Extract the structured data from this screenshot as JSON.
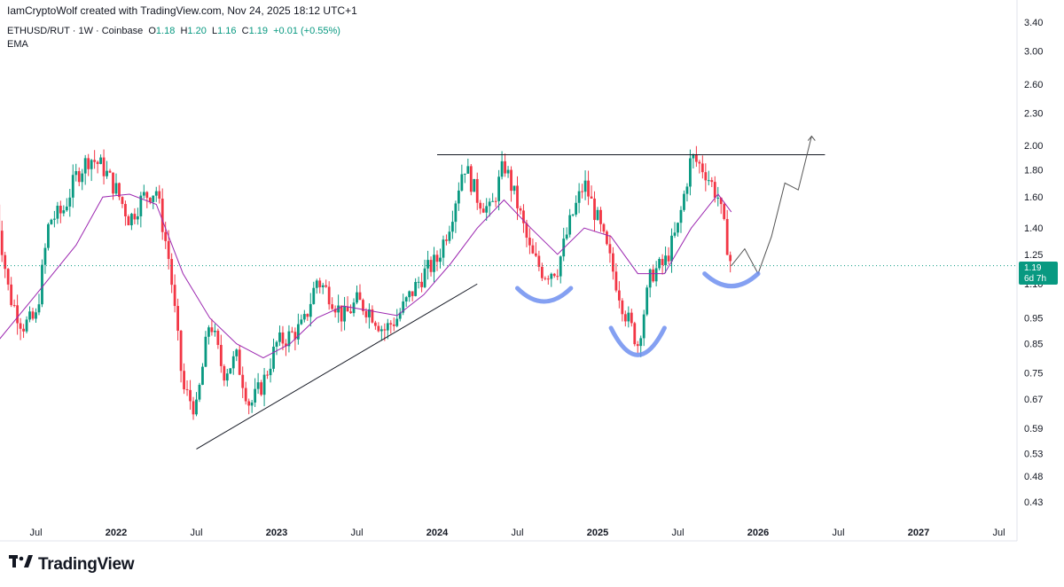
{
  "header": {
    "attribution": "IamCryptoWolf created with TradingView.com, Nov 24, 2025 18:12 UTC+1"
  },
  "legend": {
    "symbol": "ETHUSD/RUT · 1W · Coinbase",
    "o_label": "O",
    "o_value": "1.18",
    "h_label": "H",
    "h_value": "1.20",
    "l_label": "L",
    "l_value": "1.16",
    "c_label": "C",
    "c_value": "1.19",
    "change": "+0.01 (+0.55%)",
    "indicator": "EMA"
  },
  "price_badge": {
    "price": "1.19",
    "countdown": "6d 7h"
  },
  "footer": {
    "brand": "TradingView"
  },
  "colors": {
    "up": "#089981",
    "down": "#f23645",
    "ema": "#9c27b0",
    "pattern": "#6e8ff0",
    "badge": "#089981"
  },
  "chart_data": {
    "type": "line",
    "symbol": "ETHUSD/RUT",
    "interval": "1W",
    "scale": "log",
    "y_ticks": [
      3.4,
      3.0,
      2.6,
      2.3,
      2.0,
      1.8,
      1.6,
      1.4,
      1.25,
      1.1,
      0.95,
      0.85,
      0.75,
      0.67,
      0.59,
      0.53,
      0.48,
      0.43
    ],
    "y_tick_labels": [
      "3.40",
      "3.00",
      "2.60",
      "2.30",
      "2.00",
      "1.80",
      "1.60",
      "1.40",
      "1.25",
      "1.10",
      "0.95",
      "0.85",
      "0.75",
      "0.67",
      "0.59",
      "0.53",
      "0.48",
      "0.43"
    ],
    "x_ticks": [
      {
        "label": "Jul",
        "date": "2021-07",
        "year": false
      },
      {
        "label": "2022",
        "date": "2022-01",
        "year": true
      },
      {
        "label": "Jul",
        "date": "2022-07",
        "year": false
      },
      {
        "label": "2023",
        "date": "2023-01",
        "year": true
      },
      {
        "label": "Jul",
        "date": "2023-07",
        "year": false
      },
      {
        "label": "2024",
        "date": "2024-01",
        "year": true
      },
      {
        "label": "Jul",
        "date": "2024-07",
        "year": false
      },
      {
        "label": "2025",
        "date": "2025-01",
        "year": true
      },
      {
        "label": "Jul",
        "date": "2025-07",
        "year": false
      },
      {
        "label": "2026",
        "date": "2026-01",
        "year": true
      },
      {
        "label": "Jul",
        "date": "2026-07",
        "year": false
      },
      {
        "label": "2027",
        "date": "2027-01",
        "year": true
      },
      {
        "label": "Jul",
        "date": "2027-07",
        "year": false
      }
    ],
    "x_range": [
      "2021-04",
      "2027-10"
    ],
    "y_range": [
      0.4,
      3.5
    ],
    "current_price": 1.19,
    "series": [
      {
        "kind": "price_path",
        "points": [
          [
            "2021-04",
            1.55
          ],
          [
            "2021-05",
            1.05
          ],
          [
            "2021-06",
            0.92
          ],
          [
            "2021-07",
            0.95
          ],
          [
            "2021-08",
            1.45
          ],
          [
            "2021-09",
            1.5
          ],
          [
            "2021-10",
            1.75
          ],
          [
            "2021-11",
            1.9
          ],
          [
            "2021-12",
            1.82
          ],
          [
            "2022-01",
            1.65
          ],
          [
            "2022-02",
            1.45
          ],
          [
            "2022-03",
            1.6
          ],
          [
            "2022-04",
            1.65
          ],
          [
            "2022-05",
            1.2
          ],
          [
            "2022-06",
            0.7
          ],
          [
            "2022-07",
            0.64
          ],
          [
            "2022-08",
            0.95
          ],
          [
            "2022-09",
            0.75
          ],
          [
            "2022-10",
            0.8
          ],
          [
            "2022-11",
            0.65
          ],
          [
            "2022-12",
            0.72
          ],
          [
            "2023-01",
            0.85
          ],
          [
            "2023-02",
            0.88
          ],
          [
            "2023-03",
            0.92
          ],
          [
            "2023-04",
            1.12
          ],
          [
            "2023-05",
            1.05
          ],
          [
            "2023-06",
            0.95
          ],
          [
            "2023-07",
            1.02
          ],
          [
            "2023-08",
            0.98
          ],
          [
            "2023-09",
            0.9
          ],
          [
            "2023-10",
            0.95
          ],
          [
            "2023-11",
            1.05
          ],
          [
            "2023-12",
            1.15
          ],
          [
            "2024-01",
            1.22
          ],
          [
            "2024-02",
            1.45
          ],
          [
            "2024-03",
            1.85
          ],
          [
            "2024-04",
            1.6
          ],
          [
            "2024-05",
            1.5
          ],
          [
            "2024-06",
            1.85
          ],
          [
            "2024-07",
            1.55
          ],
          [
            "2024-08",
            1.25
          ],
          [
            "2024-09",
            1.15
          ],
          [
            "2024-10",
            1.18
          ],
          [
            "2024-11",
            1.45
          ],
          [
            "2024-12",
            1.7
          ],
          [
            "2025-01",
            1.45
          ],
          [
            "2025-02",
            1.2
          ],
          [
            "2025-03",
            0.98
          ],
          [
            "2025-04",
            0.85
          ],
          [
            "2025-05",
            1.15
          ],
          [
            "2025-06",
            1.2
          ],
          [
            "2025-07",
            1.4
          ],
          [
            "2025-08",
            1.9
          ],
          [
            "2025-09",
            1.8
          ],
          [
            "2025-10",
            1.6
          ],
          [
            "2025-11",
            1.19
          ]
        ]
      },
      {
        "kind": "ema",
        "points": [
          [
            "2021-04",
            0.85
          ],
          [
            "2021-07",
            1.05
          ],
          [
            "2021-10",
            1.3
          ],
          [
            "2021-12",
            1.6
          ],
          [
            "2022-02",
            1.62
          ],
          [
            "2022-04",
            1.55
          ],
          [
            "2022-06",
            1.15
          ],
          [
            "2022-08",
            0.95
          ],
          [
            "2022-10",
            0.85
          ],
          [
            "2022-12",
            0.8
          ],
          [
            "2023-02",
            0.85
          ],
          [
            "2023-04",
            0.95
          ],
          [
            "2023-06",
            1.0
          ],
          [
            "2023-08",
            0.98
          ],
          [
            "2023-10",
            0.96
          ],
          [
            "2023-12",
            1.05
          ],
          [
            "2024-02",
            1.2
          ],
          [
            "2024-04",
            1.4
          ],
          [
            "2024-06",
            1.58
          ],
          [
            "2024-08",
            1.4
          ],
          [
            "2024-10",
            1.25
          ],
          [
            "2024-12",
            1.4
          ],
          [
            "2025-02",
            1.35
          ],
          [
            "2025-04",
            1.15
          ],
          [
            "2025-06",
            1.15
          ],
          [
            "2025-08",
            1.4
          ],
          [
            "2025-10",
            1.62
          ],
          [
            "2025-11",
            1.5
          ]
        ]
      }
    ],
    "drawings": [
      {
        "kind": "resistance_line",
        "from": [
          "2024-01",
          1.92
        ],
        "to": [
          "2026-06",
          1.92
        ]
      },
      {
        "kind": "support_trendline",
        "from": [
          "2022-07",
          0.54
        ],
        "to": [
          "2024-04",
          1.1
        ]
      },
      {
        "kind": "projection",
        "points": [
          [
            "2025-11",
            1.19
          ],
          [
            "2025-12",
            1.28
          ],
          [
            "2026-01",
            1.15
          ],
          [
            "2026-02",
            1.35
          ],
          [
            "2026-03",
            1.7
          ],
          [
            "2026-04",
            1.65
          ],
          [
            "2026-05",
            2.08
          ]
        ]
      }
    ]
  }
}
